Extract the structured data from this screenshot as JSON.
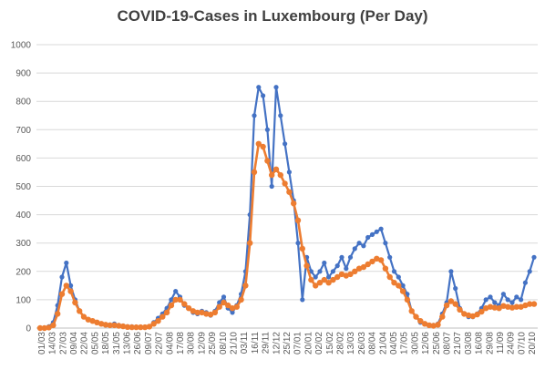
{
  "chart_data": {
    "type": "line",
    "title": "COVID-19-Cases in Luxembourg (Per Day)",
    "xlabel": "",
    "ylabel": "",
    "ylim": [
      0,
      1000
    ],
    "yticks": [
      0,
      100,
      200,
      300,
      400,
      500,
      600,
      700,
      800,
      900,
      1000
    ],
    "grid": true,
    "legend": "none",
    "x_tick_labels": [
      "01/03",
      "14/03",
      "27/03",
      "09/04",
      "22/04",
      "05/05",
      "18/05",
      "31/05",
      "13/06",
      "26/06",
      "09/07",
      "22/07",
      "04/08",
      "17/08",
      "30/08",
      "12/09",
      "25/09",
      "08/10",
      "21/10",
      "03/11",
      "16/11",
      "29/11",
      "12/12",
      "25/12",
      "07/01",
      "20/01",
      "02/02",
      "15/02",
      "28/02",
      "13/03",
      "26/03",
      "08/04",
      "21/04",
      "04/05",
      "17/05",
      "30/05",
      "12/06",
      "25/06",
      "08/07",
      "21/07",
      "03/08",
      "16/08",
      "29/08",
      "11/09",
      "24/09",
      "07/10",
      "20/10"
    ],
    "colors": {
      "daily": "#4472C4",
      "smoothed": "#ED7D31"
    },
    "series": [
      {
        "name": "",
        "values": [
          0,
          0,
          5,
          20,
          80,
          180,
          230,
          150,
          100,
          60,
          40,
          30,
          25,
          20,
          15,
          10,
          12,
          15,
          10,
          8,
          5,
          5,
          4,
          3,
          3,
          5,
          20,
          35,
          50,
          70,
          100,
          130,
          110,
          80,
          70,
          55,
          50,
          60,
          55,
          45,
          60,
          90,
          110,
          70,
          55,
          80,
          120,
          200,
          400,
          750,
          850,
          820,
          700,
          500,
          850,
          750,
          650,
          550,
          450,
          300,
          100,
          250,
          200,
          180,
          200,
          230,
          180,
          200,
          220,
          250,
          210,
          250,
          280,
          300,
          290,
          320,
          330,
          340,
          350,
          300,
          250,
          200,
          180,
          150,
          120,
          60,
          40,
          20,
          15,
          10,
          10,
          15,
          50,
          90,
          200,
          140,
          70,
          50,
          40,
          40,
          50,
          70,
          100,
          110,
          90,
          80,
          120,
          100,
          90,
          110,
          100,
          160,
          200,
          250
        ]
      },
      {
        "name": "",
        "values": [
          0,
          0,
          2,
          10,
          50,
          120,
          150,
          130,
          90,
          60,
          40,
          30,
          25,
          20,
          15,
          12,
          10,
          10,
          8,
          6,
          4,
          3,
          3,
          3,
          3,
          5,
          15,
          25,
          40,
          55,
          80,
          100,
          100,
          85,
          70,
          60,
          55,
          55,
          50,
          48,
          55,
          75,
          90,
          80,
          70,
          75,
          100,
          150,
          300,
          550,
          650,
          640,
          590,
          540,
          560,
          540,
          510,
          480,
          440,
          380,
          280,
          220,
          170,
          150,
          160,
          170,
          160,
          170,
          180,
          190,
          185,
          190,
          200,
          210,
          215,
          225,
          235,
          245,
          240,
          210,
          180,
          160,
          150,
          130,
          100,
          60,
          40,
          25,
          15,
          10,
          8,
          12,
          40,
          80,
          95,
          85,
          65,
          50,
          45,
          42,
          48,
          58,
          70,
          75,
          72,
          70,
          78,
          75,
          72,
          75,
          75,
          80,
          85,
          85
        ]
      }
    ]
  }
}
